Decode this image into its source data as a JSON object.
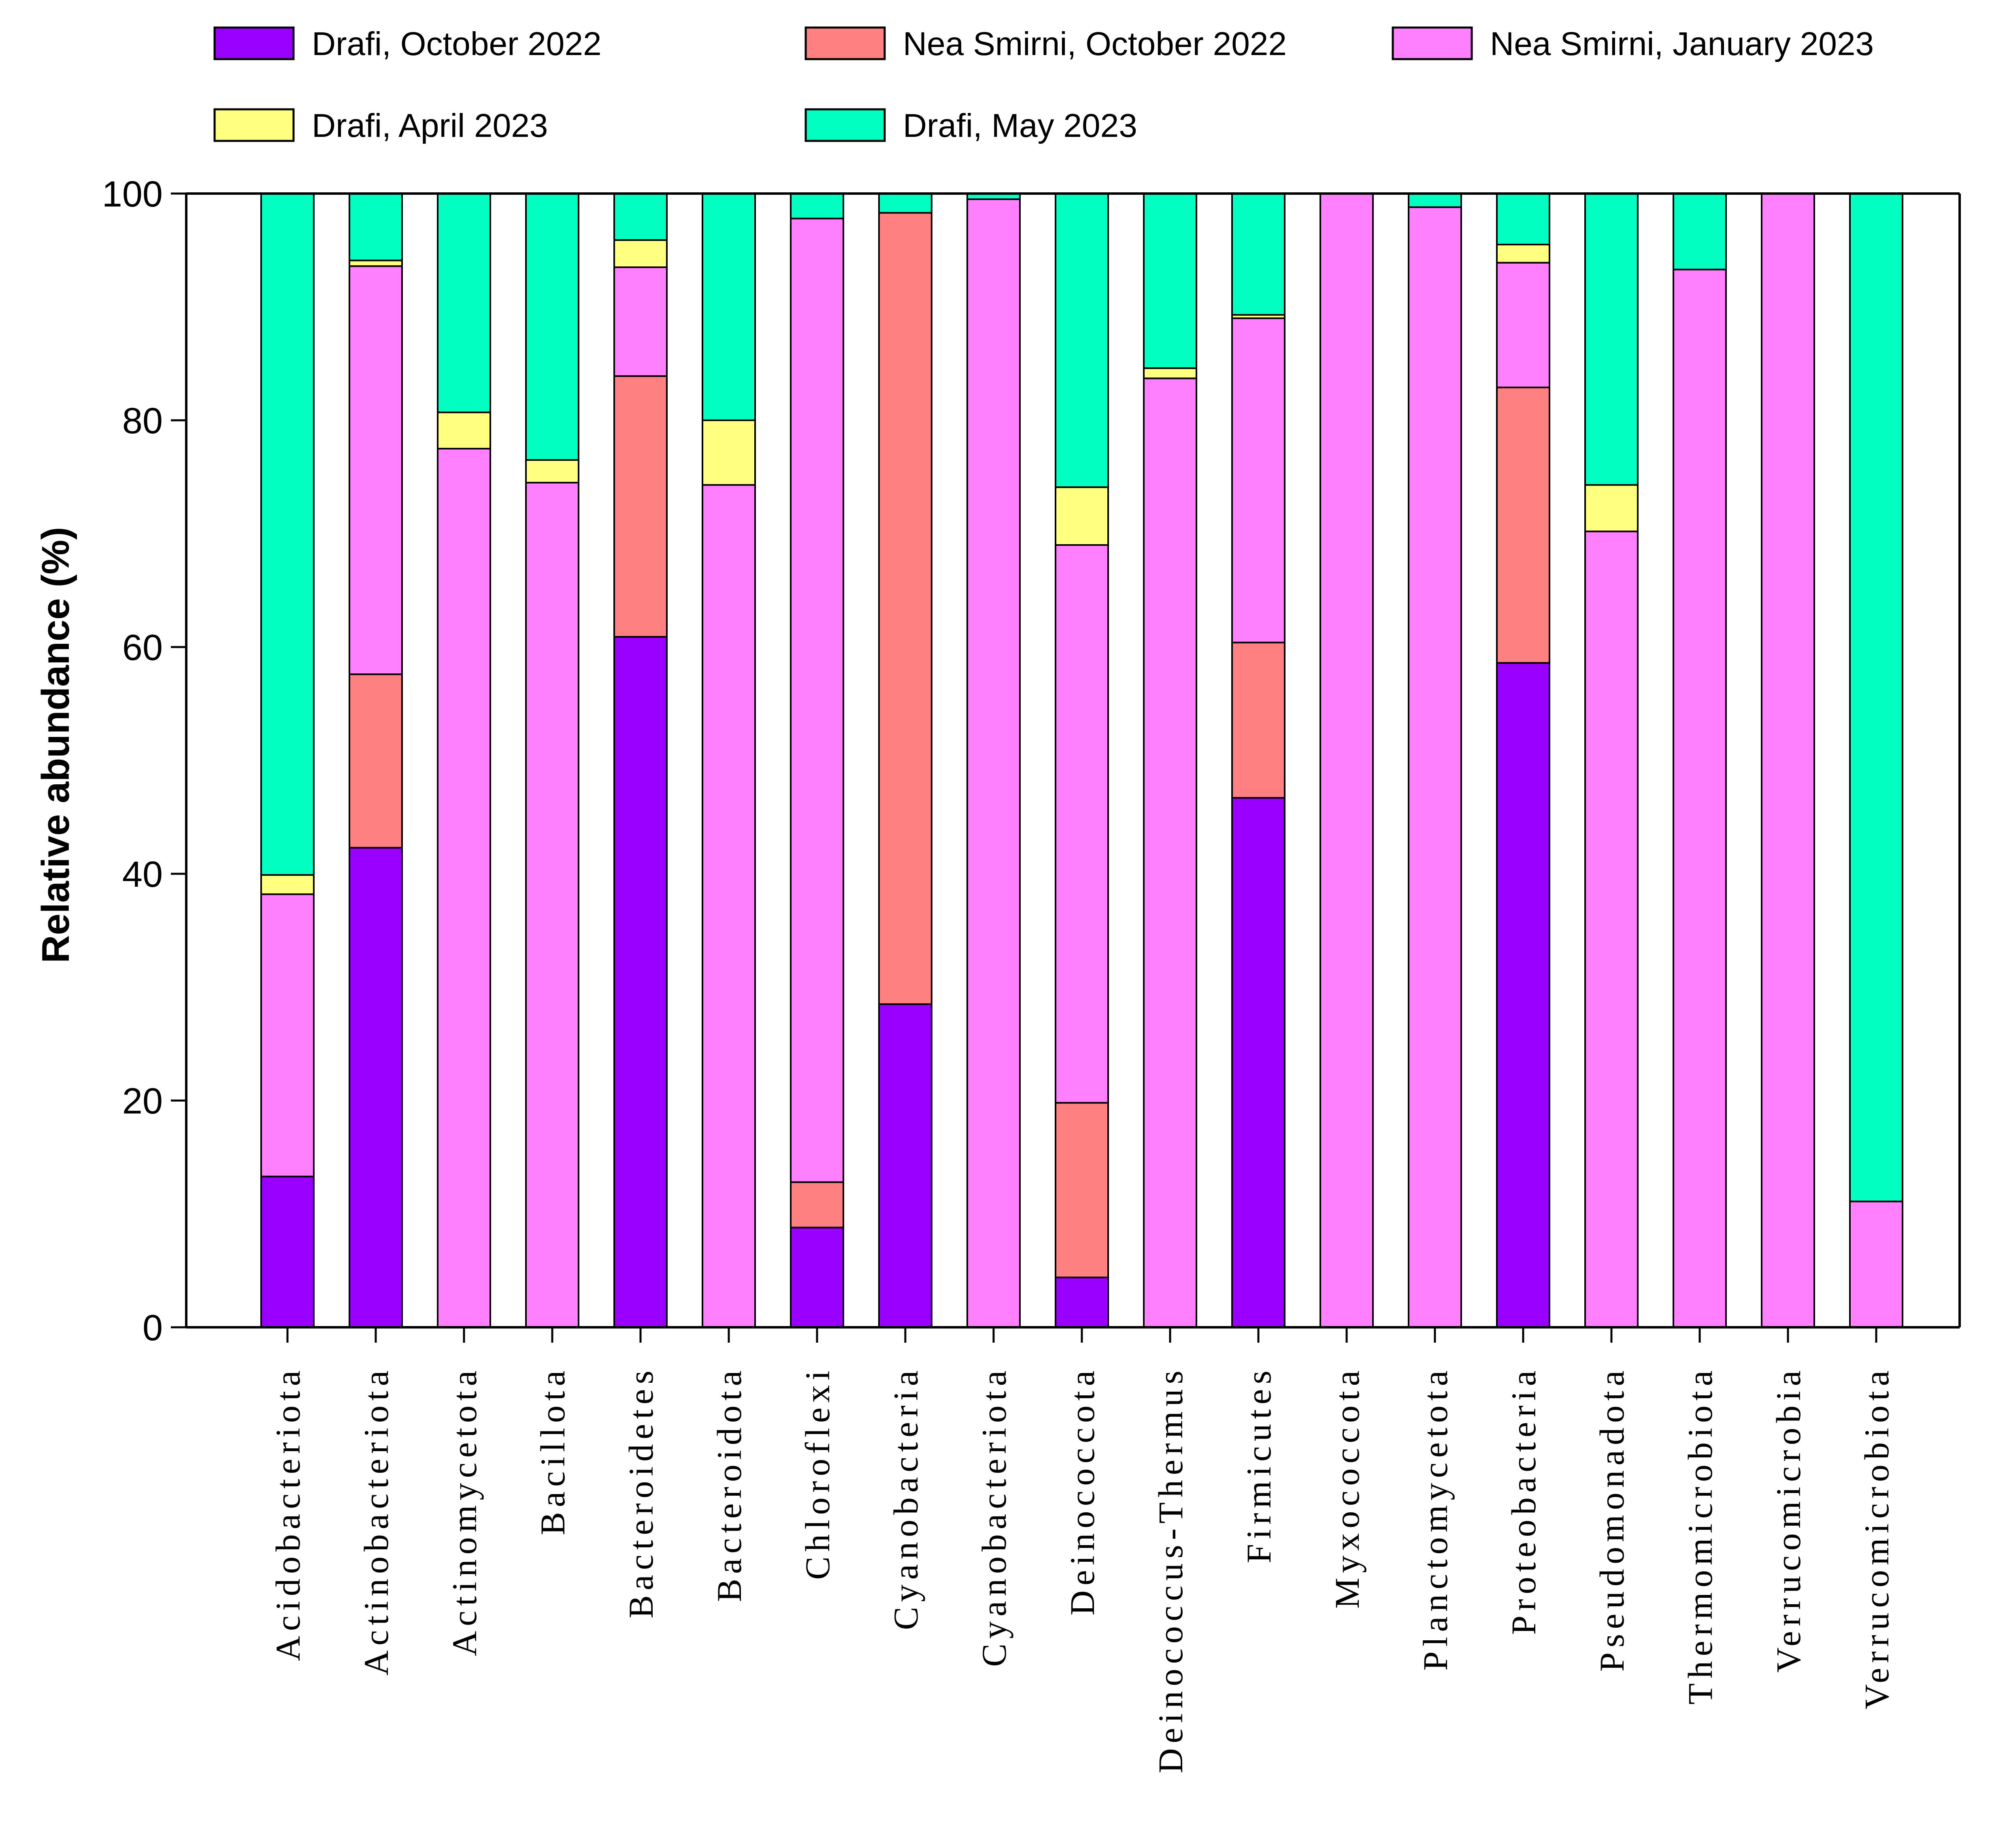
{
  "chart_data": {
    "type": "bar",
    "stacked": true,
    "title": "",
    "xlabel": "",
    "ylabel": "Relative abundance (%)",
    "ylim": [
      0,
      100
    ],
    "yticks": [
      "0",
      "20",
      "40",
      "60",
      "80",
      "100"
    ],
    "legend_position": "top",
    "categories": [
      "Acidobacteriota",
      "Actinobacteriota",
      "Actinomycetota",
      "Bacillota",
      "Bacteroidetes",
      "Bacteroidota",
      "Chloroflexi",
      "Cyanobacteria",
      "Cyanobacteriota",
      "Deinococcota",
      "Deinococcus-Thermus",
      "Firmicutes",
      "Myxococcota",
      "Planctomycetota",
      "Proteobacteria",
      "Pseudomonadota",
      "Thermomicrobiota",
      "Verrucomicrobia",
      "Verrucomicrobiota"
    ],
    "series": [
      {
        "name": "Drafi, October 2022",
        "color": "#9900FF",
        "values": [
          13.3,
          42.3,
          0,
          0,
          60.9,
          0,
          8.8,
          28.5,
          0,
          4.4,
          0,
          46.7,
          0,
          0,
          58.6,
          0,
          0,
          0,
          0
        ]
      },
      {
        "name": "Nea Smirni, October 2022",
        "color": "#FF8080",
        "values": [
          0,
          15.3,
          0,
          0,
          23.0,
          0,
          4.0,
          69.8,
          0,
          15.4,
          0,
          13.7,
          0,
          0,
          24.3,
          0,
          0,
          0,
          0
        ]
      },
      {
        "name": "Nea Smirni, January 2023",
        "color": "#FF80FF",
        "values": [
          24.9,
          36.0,
          77.5,
          74.5,
          9.6,
          74.3,
          85.0,
          0,
          99.5,
          49.2,
          83.7,
          28.6,
          100.0,
          98.8,
          11.0,
          70.2,
          93.3,
          100.0,
          11.1
        ]
      },
      {
        "name": "Drafi, April 2023",
        "color": "#FFFF80",
        "values": [
          1.7,
          0.5,
          3.2,
          2.0,
          2.4,
          5.7,
          0,
          0,
          0,
          5.1,
          0.9,
          0.3,
          0,
          0,
          1.6,
          4.1,
          0,
          0,
          0
        ]
      },
      {
        "name": "Drafi, May 2023",
        "color": "#00FFC0",
        "values": [
          60.1,
          5.9,
          19.3,
          23.5,
          4.1,
          20.0,
          2.2,
          1.7,
          0.5,
          25.9,
          15.4,
          10.7,
          0,
          1.2,
          4.5,
          25.7,
          6.7,
          0,
          88.9
        ]
      }
    ]
  }
}
